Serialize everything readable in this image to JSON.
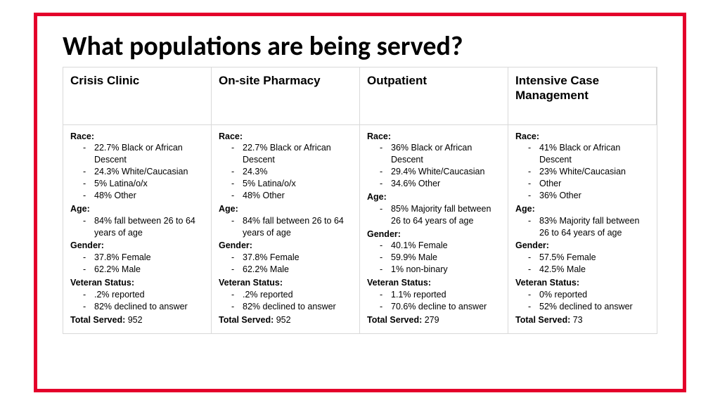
{
  "title": "What populations are being served?",
  "frame_border_color": "#e4002b",
  "cell_border_color": "#d9d9d9",
  "columns": [
    {
      "header": "Crisis Clinic",
      "sections": [
        {
          "label": "Race:",
          "items": [
            "22.7% Black or African Descent",
            "24.3% White/Caucasian",
            "5% Latina/o/x",
            "48% Other"
          ]
        },
        {
          "label": "Age:",
          "items": [
            "84% fall between 26 to 64 years of age"
          ]
        },
        {
          "label": "Gender:",
          "items": [
            "37.8% Female",
            "62.2% Male"
          ]
        },
        {
          "label": "Veteran Status:",
          "items": [
            ".2% reported",
            "82% declined to answer"
          ]
        }
      ],
      "total_label": "Total Served:",
      "total_value": "952"
    },
    {
      "header": "On-site Pharmacy",
      "sections": [
        {
          "label": "Race:",
          "items": [
            "22.7% Black or African Descent",
            "24.3%",
            "5% Latina/o/x",
            "48% Other"
          ]
        },
        {
          "label": "Age:",
          "items": [
            "84% fall between 26 to 64 years of age"
          ]
        },
        {
          "label": "Gender:",
          "items": [
            "37.8% Female",
            "62.2% Male"
          ]
        },
        {
          "label": "Veteran Status:",
          "items": [
            ".2% reported",
            "82% declined to answer"
          ]
        }
      ],
      "total_label": "Total Served:",
      "total_value": "952"
    },
    {
      "header": "Outpatient",
      "sections": [
        {
          "label": "Race:",
          "items": [
            "36% Black or African Descent",
            "29.4% White/Caucasian",
            "34.6% Other"
          ]
        },
        {
          "label": "Age:",
          "items": [
            "85% Majority fall between 26 to 64 years of age"
          ]
        },
        {
          "label": "Gender:",
          "items": [
            "40.1% Female",
            "59.9% Male",
            "1% non-binary"
          ]
        },
        {
          "label": "Veteran Status:",
          "items": [
            "1.1% reported",
            "70.6% decline to answer"
          ]
        }
      ],
      "total_label": "Total Served:",
      "total_value": "279"
    },
    {
      "header": "Intensive Case Management",
      "sections": [
        {
          "label": "Race:",
          "items": [
            "41% Black or African Descent",
            "23% White/Caucasian",
            "Other",
            "36% Other"
          ]
        },
        {
          "label": "Age:",
          "items": [
            "83% Majority fall between 26 to 64 years of age"
          ]
        },
        {
          "label": "Gender:",
          "items": [
            "57.5% Female",
            "42.5% Male"
          ]
        },
        {
          "label": "Veteran Status:",
          "items": [
            "0% reported",
            "52% declined to answer"
          ]
        }
      ],
      "total_label": "Total Served:",
      "total_value": "73"
    }
  ]
}
